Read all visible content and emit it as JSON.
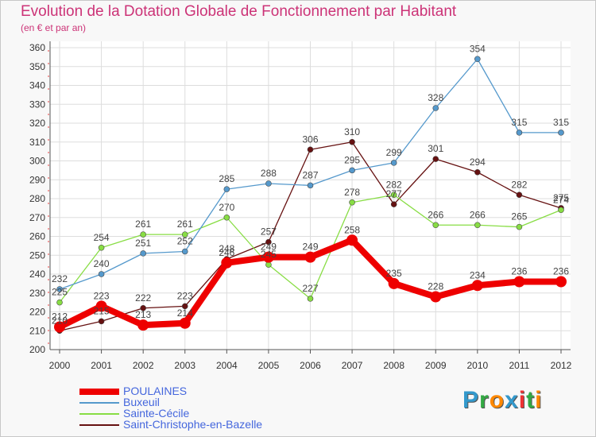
{
  "page": {
    "title": "Evolution de la Dotation Globale de Fonctionnement par Habitant",
    "subtitle": "(en € et par an)"
  },
  "logo": {
    "text": "Proxiti",
    "letters": [
      {
        "ch": "P",
        "color": "#3399cc"
      },
      {
        "ch": "r",
        "color": "#33aa44"
      },
      {
        "ch": "o",
        "color": "#ff8800"
      },
      {
        "ch": "x",
        "color": "#3399cc"
      },
      {
        "ch": "i",
        "color": "#ee3333"
      },
      {
        "ch": "t",
        "color": "#33aa44"
      },
      {
        "ch": "i",
        "color": "#ff8800"
      }
    ]
  },
  "chart_data": {
    "type": "line",
    "title": "Evolution de la Dotation Globale de Fonctionnement par Habitant",
    "subtitle": "(en € et par an)",
    "xlabel": "",
    "ylabel": "",
    "categories": [
      "2000",
      "2001",
      "2002",
      "2003",
      "2004",
      "2005",
      "2006",
      "2007",
      "2008",
      "2009",
      "2010",
      "2011",
      "2012"
    ],
    "ylim": [
      200,
      360
    ],
    "yticks": [
      200,
      210,
      220,
      230,
      240,
      250,
      260,
      270,
      280,
      290,
      300,
      310,
      320,
      330,
      340,
      350,
      360
    ],
    "grid": true,
    "legend_position": "bottom-left",
    "series": [
      {
        "name": "Saint-Christophe-en-Bazelle",
        "color": "#661111",
        "style": "thin",
        "values": [
          210,
          215,
          222,
          223,
          248,
          257,
          306,
          310,
          277,
          301,
          294,
          282,
          275
        ]
      },
      {
        "name": "Sainte-Cécile",
        "color": "#88dd44",
        "style": "thin",
        "values": [
          225,
          254,
          261,
          261,
          270,
          245,
          227,
          278,
          282,
          266,
          266,
          265,
          274
        ]
      },
      {
        "name": "Buxeuil",
        "color": "#5599cc",
        "style": "thin",
        "values": [
          232,
          240,
          251,
          252,
          285,
          288,
          287,
          295,
          299,
          328,
          354,
          315,
          315
        ]
      },
      {
        "name": "POULAINES",
        "color": "#ee0000",
        "style": "thick",
        "values": [
          212,
          223,
          213,
          214,
          246,
          249,
          249,
          258,
          235,
          228,
          234,
          236,
          236
        ]
      }
    ],
    "legend_order": [
      "POULAINES",
      "Buxeuil",
      "Sainte-Cécile",
      "Saint-Christophe-en-Bazelle"
    ]
  }
}
